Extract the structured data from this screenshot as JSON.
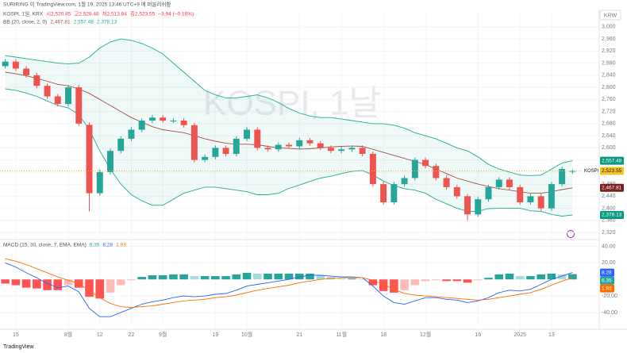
{
  "header": {
    "publisher": "SURIRING 이 TradingView.com, 1월 19, 2025 13:46 UTC+9 에 퍼블리쉬함",
    "currency": "KRW",
    "brand": "TradingView"
  },
  "chart_data": [
    {
      "type": "candlestick",
      "title": "KOSPI, 1날",
      "legend_title": "KOSPI, 1일, KRX",
      "ohlc_labels": [
        "시2,520.85",
        "고2,528.48",
        "저2,513.84",
        "종2,523.55"
      ],
      "change_label": "−3.94 (−0.16%)",
      "tag_symbol": "KOSPI",
      "last_label": "2,523.55",
      "up_color": "#26a69a",
      "down_color": "#ef5350",
      "xlim": [
        -0.5,
        54.5
      ],
      "xticks": [
        {
          "value": 1,
          "label": "15"
        },
        {
          "value": 6,
          "label": "8월"
        },
        {
          "value": 9,
          "label": "12"
        },
        {
          "value": 12,
          "label": "22"
        },
        {
          "value": 15,
          "label": "9월"
        },
        {
          "value": 20,
          "label": "19"
        },
        {
          "value": 23,
          "label": "10월"
        },
        {
          "value": 28,
          "label": "21"
        },
        {
          "value": 32,
          "label": "11월"
        },
        {
          "value": 36,
          "label": "18"
        },
        {
          "value": 40,
          "label": "12월"
        },
        {
          "value": 45,
          "label": "16"
        },
        {
          "value": 49,
          "label": "2025"
        },
        {
          "value": 52,
          "label": "13"
        }
      ],
      "ylim": [
        2302,
        3052
      ],
      "yticks": [
        {
          "value": 2320,
          "label": "2,320"
        },
        {
          "value": 2360,
          "label": "2,360"
        },
        {
          "value": 2400,
          "label": "2,400"
        },
        {
          "value": 2440,
          "label": "2,440"
        },
        {
          "value": 2480,
          "label": "2,480"
        },
        {
          "value": 2520,
          "label": "2,520"
        },
        {
          "value": 2560,
          "label": "2,560"
        },
        {
          "value": 2600,
          "label": "2,600"
        },
        {
          "value": 2640,
          "label": "2,640"
        },
        {
          "value": 2680,
          "label": "2,680"
        },
        {
          "value": 2720,
          "label": "2,720"
        },
        {
          "value": 2760,
          "label": "2,760"
        },
        {
          "value": 2800,
          "label": "2,800"
        },
        {
          "value": 2840,
          "label": "2,840"
        },
        {
          "value": 2880,
          "label": "2,880"
        },
        {
          "value": 2920,
          "label": "2,920"
        },
        {
          "value": 2960,
          "label": "2,960"
        },
        {
          "value": 3000,
          "label": "3,000"
        }
      ],
      "open": [
        2870,
        2885,
        2862,
        2840,
        2805,
        2770,
        2745,
        2800,
        2676,
        2450,
        2520,
        2590,
        2630,
        2660,
        2690,
        2700,
        2690,
        2690,
        2675,
        2560,
        2570,
        2600,
        2580,
        2630,
        2660,
        2600,
        2595,
        2610,
        2605,
        2625,
        2615,
        2600,
        2590,
        2595,
        2600,
        2580,
        2480,
        2420,
        2480,
        2500,
        2560,
        2540,
        2500,
        2470,
        2440,
        2380,
        2430,
        2470,
        2495,
        2470,
        2420,
        2440,
        2400,
        2480,
        2520.85
      ],
      "high": [
        2893,
        2893,
        2870,
        2848,
        2813,
        2778,
        2808,
        2808,
        2684,
        2528,
        2598,
        2638,
        2668,
        2698,
        2708,
        2708,
        2698,
        2698,
        2683,
        2578,
        2608,
        2608,
        2638,
        2668,
        2668,
        2608,
        2618,
        2618,
        2633,
        2633,
        2623,
        2608,
        2603,
        2608,
        2608,
        2588,
        2488,
        2488,
        2508,
        2568,
        2568,
        2548,
        2508,
        2478,
        2448,
        2438,
        2478,
        2503,
        2503,
        2478,
        2448,
        2448,
        2488,
        2538,
        2528.48
      ],
      "low": [
        2862,
        2854,
        2832,
        2797,
        2762,
        2737,
        2737,
        2672,
        2390,
        2442,
        2512,
        2582,
        2622,
        2652,
        2682,
        2682,
        2682,
        2667,
        2552,
        2552,
        2562,
        2572,
        2572,
        2622,
        2592,
        2587,
        2587,
        2597,
        2597,
        2607,
        2592,
        2582,
        2582,
        2587,
        2572,
        2472,
        2412,
        2412,
        2472,
        2492,
        2532,
        2492,
        2462,
        2432,
        2360,
        2372,
        2422,
        2462,
        2462,
        2412,
        2412,
        2392,
        2392,
        2472,
        2513.84
      ],
      "close": [
        2885,
        2862,
        2840,
        2805,
        2770,
        2745,
        2800,
        2680,
        2450,
        2520,
        2590,
        2630,
        2660,
        2690,
        2700,
        2690,
        2690,
        2675,
        2560,
        2570,
        2600,
        2580,
        2630,
        2660,
        2600,
        2595,
        2610,
        2605,
        2625,
        2615,
        2600,
        2590,
        2595,
        2600,
        2580,
        2480,
        2420,
        2480,
        2500,
        2560,
        2540,
        2500,
        2470,
        2440,
        2380,
        2430,
        2470,
        2495,
        2470,
        2420,
        2440,
        2400,
        2480,
        2530,
        2523.55
      ],
      "bb": {
        "title": "BB (20, close, 2, 0)",
        "fill": "#22ab94",
        "series": [
          {
            "label": "2,467.81",
            "color": "#a0504a",
            "values": [
              2850,
              2845,
              2838,
              2830,
              2820,
              2810,
              2805,
              2795,
              2780,
              2760,
              2740,
              2720,
              2700,
              2685,
              2670,
              2660,
              2655,
              2650,
              2640,
              2630,
              2622,
              2615,
              2612,
              2612,
              2610,
              2605,
              2600,
              2598,
              2596,
              2597,
              2600,
              2603,
              2605,
              2606,
              2605,
              2595,
              2585,
              2575,
              2565,
              2555,
              2545,
              2530,
              2515,
              2500,
              2490,
              2480,
              2472,
              2465,
              2460,
              2455,
              2450,
              2450,
              2455,
              2462,
              2467.81
            ]
          },
          {
            "label": "2,557.48",
            "color": "#22ab94",
            "values": [
              2905,
              2900,
              2895,
              2890,
              2885,
              2880,
              2878,
              2880,
              2900,
              2930,
              2950,
              2960,
              2955,
              2945,
              2930,
              2910,
              2880,
              2850,
              2820,
              2790,
              2775,
              2765,
              2765,
              2770,
              2775,
              2765,
              2750,
              2730,
              2715,
              2705,
              2700,
              2700,
              2695,
              2690,
              2685,
              2680,
              2680,
              2675,
              2665,
              2650,
              2640,
              2630,
              2615,
              2600,
              2590,
              2570,
              2545,
              2530,
              2520,
              2510,
              2508,
              2510,
              2530,
              2550,
              2557.48
            ]
          },
          {
            "label": "2,378.13",
            "color": "#22ab94",
            "values": [
              2795,
              2790,
              2781,
              2770,
              2755,
              2740,
              2732,
              2710,
              2660,
              2590,
              2530,
              2480,
              2445,
              2425,
              2410,
              2410,
              2430,
              2450,
              2460,
              2470,
              2470,
              2465,
              2460,
              2455,
              2445,
              2445,
              2450,
              2466,
              2477,
              2489,
              2500,
              2506,
              2515,
              2522,
              2525,
              2510,
              2490,
              2475,
              2465,
              2460,
              2450,
              2430,
              2415,
              2400,
              2390,
              2390,
              2399,
              2400,
              2400,
              2400,
              2392,
              2390,
              2380,
              2374,
              2378.13
            ]
          }
        ]
      }
    },
    {
      "type": "macd",
      "title": "MACD (15, 30, close, 7, EMA, EMA)",
      "ylim": [
        -55.4,
        45.3
      ],
      "yticks": [
        {
          "value": 40,
          "label": "40.00"
        },
        {
          "value": 20,
          "label": "20.00"
        },
        {
          "value": -20,
          "label": "-20.00"
        },
        {
          "value": -40,
          "label": "-40.00"
        }
      ],
      "histogram": {
        "label": "6.35",
        "color": "#26a69a",
        "negative_color": "#ff5252",
        "values": [
          -5,
          -7,
          -10,
          -11,
          -13,
          -13,
          -7,
          -10,
          -21,
          -23,
          -16,
          -7,
          -1,
          3,
          5,
          5,
          6,
          6,
          4,
          4,
          4,
          4,
          6,
          8,
          7,
          7,
          7,
          7,
          7,
          7,
          5,
          3,
          1,
          1,
          0,
          -7,
          -14,
          -16,
          -13,
          -7,
          -2,
          -1,
          -2,
          -2,
          -4,
          -1,
          2,
          6,
          7,
          4,
          4,
          6,
          7,
          6,
          6.35
        ]
      },
      "series": [
        {
          "label": "8.28",
          "color": "#2962ff",
          "values": [
            20,
            15,
            8,
            2,
            -5,
            -10,
            -8,
            -15,
            -35,
            -45,
            -45,
            -40,
            -35,
            -30,
            -27,
            -25,
            -22,
            -20,
            -21,
            -20,
            -18,
            -17,
            -13,
            -8,
            -6,
            -4,
            -2,
            0,
            3,
            5,
            5,
            4,
            3,
            3,
            2,
            -8,
            -20,
            -28,
            -30,
            -26,
            -22,
            -22,
            -24,
            -25,
            -28,
            -26,
            -22,
            -16,
            -13,
            -14,
            -12,
            -6,
            0,
            4,
            8.28
          ]
        },
        {
          "label": "1.93",
          "color": "#ff6d00",
          "values": [
            25,
            22,
            18,
            13,
            8,
            3,
            -1,
            -5,
            -14,
            -22,
            -29,
            -33,
            -34,
            -33,
            -32,
            -30,
            -28,
            -26,
            -25,
            -24,
            -22,
            -21,
            -19,
            -16,
            -13,
            -11,
            -9,
            -7,
            -4,
            -2,
            0,
            1,
            2,
            2,
            2,
            -1,
            -6,
            -12,
            -17,
            -19,
            -20,
            -21,
            -22,
            -23,
            -24,
            -25,
            -24,
            -22,
            -20,
            -18,
            -16,
            -12,
            -7,
            -2,
            1.93
          ]
        }
      ]
    }
  ]
}
